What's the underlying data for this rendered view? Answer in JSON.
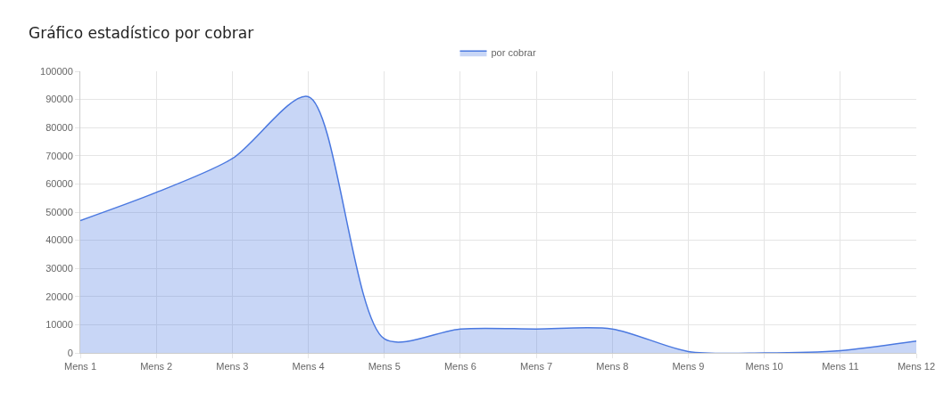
{
  "chart_data": {
    "type": "area",
    "title": "Gráfico estadístico por cobrar",
    "categories": [
      "Mens 1",
      "Mens 2",
      "Mens 3",
      "Mens 4",
      "Mens 5",
      "Mens 6",
      "Mens 7",
      "Mens 8",
      "Mens 9",
      "Mens 10",
      "Mens 11",
      "Mens 12"
    ],
    "series": [
      {
        "name": "por cobrar",
        "color": "#4a78e0",
        "values": [
          47000,
          57000,
          69000,
          91000,
          5000,
          8500,
          8500,
          8500,
          500,
          0,
          800,
          4200
        ]
      }
    ],
    "ylim": [
      0,
      100000
    ],
    "yticks": [
      0,
      10000,
      20000,
      30000,
      40000,
      50000,
      60000,
      70000,
      80000,
      90000,
      100000
    ],
    "grid": true,
    "legend": "top",
    "line_style": "solid"
  }
}
